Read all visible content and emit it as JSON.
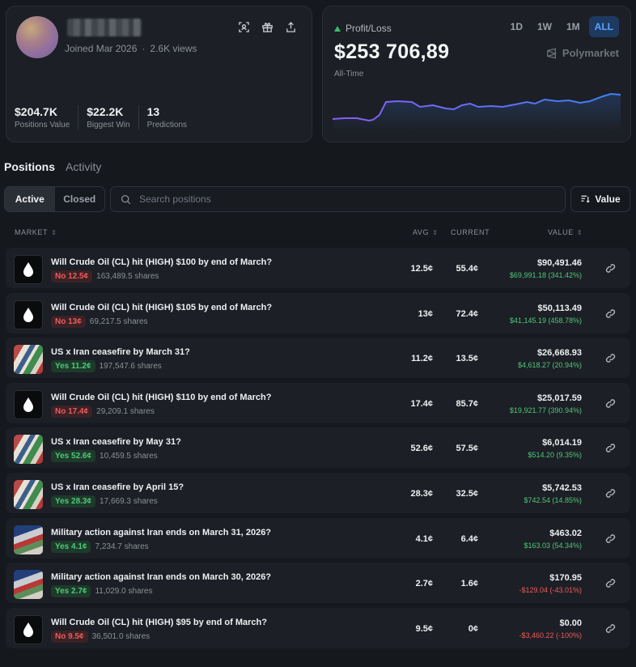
{
  "profile": {
    "joined": "Joined Mar 2026",
    "views": "2.6K views",
    "icons": [
      "scan-icon",
      "gift-icon",
      "share-icon"
    ],
    "stats": [
      {
        "value": "$204.7K",
        "label": "Positions Value"
      },
      {
        "value": "$22.2K",
        "label": "Biggest Win"
      },
      {
        "value": "13",
        "label": "Predictions"
      }
    ]
  },
  "pnl": {
    "label": "Profit/Loss",
    "value": "$253 706,89",
    "period_label": "All-Time",
    "brand": "Polymarket",
    "ranges": [
      "1D",
      "1W",
      "1M",
      "ALL"
    ],
    "active_range": "ALL",
    "chart_color_start": "#8a5cf6",
    "chart_color_end": "#3b82f6"
  },
  "tabs": {
    "positions": "Positions",
    "activity": "Activity"
  },
  "filter": {
    "active": "Active",
    "closed": "Closed"
  },
  "search": {
    "placeholder": "Search positions"
  },
  "sort": {
    "label": "Value"
  },
  "columns": {
    "market": "MARKET",
    "avg": "AVG",
    "current": "CURRENT",
    "value": "VALUE"
  },
  "rows": [
    {
      "title": "Will Crude Oil (CL) hit (HIGH) $100 by end of March?",
      "side": "No",
      "price": "12.5¢",
      "shares": "163,489.5 shares",
      "avg": "12.5¢",
      "current": "55.4¢",
      "value": "$90,491.46",
      "change": "$69,991.18 (341.42%)",
      "thumb": "oil",
      "positive": true
    },
    {
      "title": "Will Crude Oil (CL) hit (HIGH) $105 by end of March?",
      "side": "No",
      "price": "13¢",
      "shares": "69,217.5 shares",
      "avg": "13¢",
      "current": "72.4¢",
      "value": "$50,113.49",
      "change": "$41,145.19 (458.78%)",
      "thumb": "oil",
      "positive": true
    },
    {
      "title": "US x Iran ceasefire by March 31?",
      "side": "Yes",
      "price": "11.2¢",
      "shares": "197,547.6 shares",
      "avg": "11.2¢",
      "current": "13.5¢",
      "value": "$26,668.93",
      "change": "$4,618.27 (20.94%)",
      "thumb": "flags",
      "positive": true
    },
    {
      "title": "Will Crude Oil (CL) hit (HIGH) $110 by end of March?",
      "side": "No",
      "price": "17.4¢",
      "shares": "29,209.1 shares",
      "avg": "17.4¢",
      "current": "85.7¢",
      "value": "$25,017.59",
      "change": "$19,921.77 (390.94%)",
      "thumb": "oil",
      "positive": true
    },
    {
      "title": "US x Iran ceasefire by May 31?",
      "side": "Yes",
      "price": "52.6¢",
      "shares": "10,459.5 shares",
      "avg": "52.6¢",
      "current": "57.5¢",
      "value": "$6,014.19",
      "change": "$514.20 (9.35%)",
      "thumb": "flags",
      "positive": true
    },
    {
      "title": "US x Iran ceasefire by April 15?",
      "side": "Yes",
      "price": "28.3¢",
      "shares": "17,669.3 shares",
      "avg": "28.3¢",
      "current": "32.5¢",
      "value": "$5,742.53",
      "change": "$742.54 (14.85%)",
      "thumb": "flags",
      "positive": true
    },
    {
      "title": "Military action against Iran ends on March 31, 2026?",
      "side": "Yes",
      "price": "4.1¢",
      "shares": "7,234.7 shares",
      "avg": "4.1¢",
      "current": "6.4¢",
      "value": "$463.02",
      "change": "$163.03 (54.34%)",
      "thumb": "military",
      "positive": true
    },
    {
      "title": "Military action against Iran ends on March 30, 2026?",
      "side": "Yes",
      "price": "2.7¢",
      "shares": "11,029.0 shares",
      "avg": "2.7¢",
      "current": "1.6¢",
      "value": "$170.95",
      "change": "-$129.04 (-43.01%)",
      "thumb": "military",
      "positive": false
    },
    {
      "title": "Will Crude Oil (CL) hit (HIGH) $95 by end of March?",
      "side": "No",
      "price": "9.5¢",
      "shares": "36,501.0 shares",
      "avg": "9.5¢",
      "current": "0¢",
      "value": "$0.00",
      "change": "-$3,460.22 (-100%)",
      "thumb": "oil",
      "positive": false
    }
  ]
}
